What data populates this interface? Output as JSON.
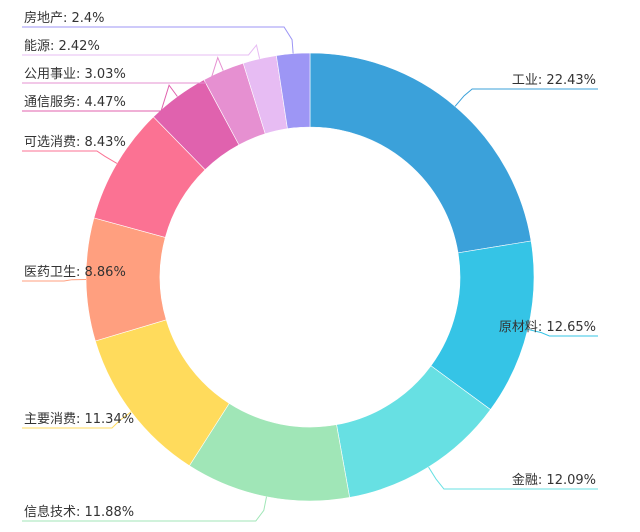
{
  "chart_data": {
    "type": "pie",
    "variant": "donut",
    "title": "",
    "legend": "none",
    "slices": [
      {
        "label": "工业",
        "value": 22.43,
        "display": "工业: 22.43%",
        "color": "#3ba1da"
      },
      {
        "label": "原材料",
        "value": 12.65,
        "display": "原材料: 12.65%",
        "color": "#35c4e6"
      },
      {
        "label": "金融",
        "value": 12.09,
        "display": "金融: 12.09%",
        "color": "#67e0e3"
      },
      {
        "label": "信息技术",
        "value": 11.88,
        "display": "信息技术: 11.88%",
        "color": "#a0e6b7"
      },
      {
        "label": "主要消费",
        "value": 11.34,
        "display": "主要消费: 11.34%",
        "color": "#ffdb5c"
      },
      {
        "label": "医药卫生",
        "value": 8.86,
        "display": "医药卫生: 8.86%",
        "color": "#ff9f7f"
      },
      {
        "label": "可选消费",
        "value": 8.43,
        "display": "可选消费: 8.43%",
        "color": "#fb7293"
      },
      {
        "label": "通信服务",
        "value": 4.47,
        "display": "通信服务: 4.47%",
        "color": "#e062ae"
      },
      {
        "label": "公用事业",
        "value": 3.03,
        "display": "公用事业: 3.03%",
        "color": "#e690d1"
      },
      {
        "label": "能源",
        "value": 2.42,
        "display": "能源: 2.42%",
        "color": "#e7bcf3"
      },
      {
        "label": "房地产",
        "value": 2.4,
        "display": "房地产: 2.4%",
        "color": "#9d96f5"
      }
    ]
  }
}
